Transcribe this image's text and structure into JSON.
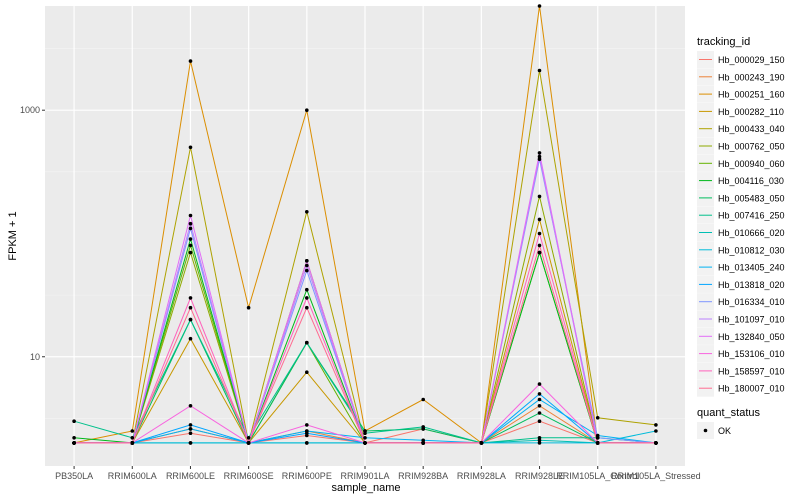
{
  "chart_data": {
    "type": "line",
    "xlabel": "sample_name",
    "ylabel": "FPKM + 1",
    "yscale": "log10",
    "ylim": [
      1.3,
      7000
    ],
    "yticks": [
      10,
      1000
    ],
    "ytick_labels": [
      "10",
      "1000"
    ],
    "grid": true,
    "legend_position": "right",
    "categories": [
      "PB350LA",
      "RRIM600LA",
      "RRIM600LE",
      "RRIM600SE",
      "RRIM600PE",
      "RRIM901LA",
      "RRIM928BA",
      "RRIM928LA",
      "RRIM928LE",
      "RRIM105LA_Control",
      "RRIM105LA_Stressed"
    ],
    "series": [
      {
        "name": "Hb_000029_150",
        "color": "#F8766D",
        "values": [
          2.0,
          2.0,
          2.4,
          2.0,
          2.3,
          2.0,
          2.6,
          2.0,
          3.0,
          2.0,
          2.0
        ]
      },
      {
        "name": "Hb_000243_190",
        "color": "#EC8239",
        "values": [
          2.0,
          2.0,
          2.6,
          2.0,
          2.5,
          2.0,
          2.0,
          2.0,
          4.0,
          2.0,
          2.0
        ]
      },
      {
        "name": "Hb_000251_160",
        "color": "#DB8E00",
        "values": [
          2.0,
          2.5,
          2500,
          25,
          1000,
          2.5,
          4.5,
          2.0,
          7000,
          2.0,
          2.0
        ]
      },
      {
        "name": "Hb_000282_110",
        "color": "#C79800",
        "values": [
          2.0,
          2.0,
          14,
          2.0,
          7.5,
          2.0,
          2.0,
          2.0,
          130,
          2.0,
          2.0
        ]
      },
      {
        "name": "Hb_000433_040",
        "color": "#AEA200",
        "values": [
          2.0,
          2.0,
          500,
          2.0,
          150,
          2.0,
          2.0,
          2.0,
          2100,
          3.2,
          2.8
        ]
      },
      {
        "name": "Hb_000762_050",
        "color": "#8FAA00",
        "values": [
          2.0,
          2.0,
          70,
          2.0,
          60,
          2.0,
          2.0,
          2.0,
          200,
          2.0,
          2.0
        ]
      },
      {
        "name": "Hb_000940_060",
        "color": "#64B200",
        "values": [
          2.0,
          2.0,
          80,
          2.0,
          13,
          2.0,
          2.0,
          2.0,
          70,
          2.0,
          2.0
        ]
      },
      {
        "name": "Hb_004116_030",
        "color": "#00B81B",
        "values": [
          2.2,
          2.0,
          90,
          2.0,
          35,
          2.0,
          2.0,
          2.0,
          70,
          2.0,
          2.0
        ]
      },
      {
        "name": "Hb_005483_050",
        "color": "#00BD5C",
        "values": [
          2.0,
          2.0,
          20,
          2.0,
          13,
          2.5,
          2.6,
          2.0,
          3.5,
          2.0,
          2.0
        ]
      },
      {
        "name": "Hb_007416_250",
        "color": "#00C08B",
        "values": [
          3.0,
          2.2,
          20,
          2.2,
          13,
          2.4,
          2.7,
          2.0,
          2.2,
          2.2,
          2.0
        ]
      },
      {
        "name": "Hb_010666_020",
        "color": "#00BFB4",
        "values": [
          2.0,
          2.0,
          2.0,
          2.0,
          2.0,
          2.0,
          2.0,
          2.0,
          2.1,
          2.0,
          2.0
        ]
      },
      {
        "name": "Hb_010812_030",
        "color": "#00BBDA",
        "values": [
          2.0,
          2.0,
          2.0,
          2.0,
          2.0,
          2.0,
          2.0,
          2.0,
          2.0,
          2.0,
          2.5
        ]
      },
      {
        "name": "Hb_013405_240",
        "color": "#00B2F3",
        "values": [
          2.0,
          2.0,
          2.6,
          2.0,
          2.5,
          2.2,
          2.1,
          2.0,
          4.5,
          2.3,
          2.0
        ]
      },
      {
        "name": "Hb_013818_020",
        "color": "#00A5FF",
        "values": [
          2.0,
          2.0,
          2.8,
          2.0,
          2.4,
          2.0,
          2.0,
          2.0,
          5.0,
          2.0,
          2.0
        ]
      },
      {
        "name": "Hb_016334_010",
        "color": "#7F96FF",
        "values": [
          2.0,
          2.0,
          110,
          2.0,
          50,
          2.0,
          2.0,
          2.0,
          400,
          2.2,
          2.0
        ]
      },
      {
        "name": "Hb_101097_010",
        "color": "#BC81FF",
        "values": [
          2.0,
          2.0,
          120,
          2.0,
          55,
          2.0,
          2.0,
          2.0,
          420,
          2.0,
          2.0
        ]
      },
      {
        "name": "Hb_132840_050",
        "color": "#E26EF7",
        "values": [
          2.0,
          2.0,
          140,
          2.0,
          60,
          2.0,
          2.0,
          2.0,
          450,
          2.0,
          2.0
        ]
      },
      {
        "name": "Hb_153106_010",
        "color": "#F863DF",
        "values": [
          2.0,
          2.0,
          4.0,
          2.0,
          2.8,
          2.0,
          2.0,
          2.0,
          6.0,
          2.0,
          2.0
        ]
      },
      {
        "name": "Hb_158597_010",
        "color": "#FF62BC",
        "values": [
          2.0,
          2.0,
          30,
          2.0,
          30,
          2.0,
          2.0,
          2.0,
          100,
          2.0,
          2.0
        ]
      },
      {
        "name": "Hb_180007_010",
        "color": "#FF6C91",
        "values": [
          2.0,
          2.0,
          25,
          2.0,
          25,
          2.0,
          2.0,
          2.0,
          80,
          2.0,
          2.0
        ]
      }
    ],
    "legend": {
      "color_title": "tracking_id",
      "shape_title": "quant_status",
      "shape_entries": [
        "OK"
      ]
    }
  }
}
